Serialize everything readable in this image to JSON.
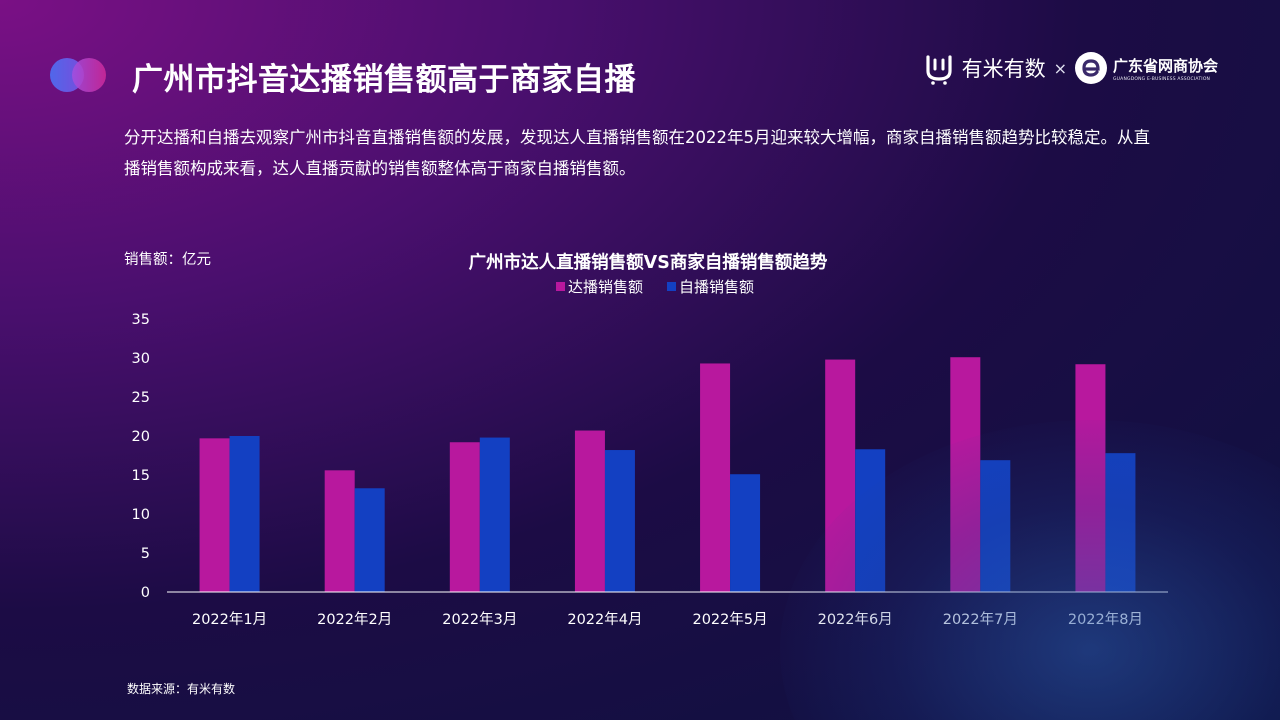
{
  "header": {
    "title": "广州市抖音达播销售额高于商家自播",
    "logo_primary_text": "有米有数",
    "logo_separator": "×",
    "logo_partner_text": "广东省网商协会",
    "logo_partner_sub": "GUANGDONG E-BUSINESS ASSOCIATION"
  },
  "description": "分开达播和自播去观察广州市抖音直播销售额的发展，发现达人直播销售额在2022年5月迎来较大增幅，商家自播销售额趋势比较稳定。从直播销售额构成来看，达人直播贡献的销售额整体高于商家自播销售额。",
  "unit_label": "销售额：亿元",
  "source_label": "数据来源：有米有数",
  "colors": {
    "series_influencer": "#b8189e",
    "series_merchant": "#1340c2",
    "axis": "#ffffff"
  },
  "chart_data": {
    "type": "bar",
    "title": "广州市达人直播销售额VS商家自播销售额趋势",
    "categories": [
      "2022年1月",
      "2022年2月",
      "2022年3月",
      "2022年4月",
      "2022年5月",
      "2022年6月",
      "2022年7月",
      "2022年8月"
    ],
    "series": [
      {
        "name": "达播销售额",
        "values": [
          19.7,
          15.6,
          19.2,
          20.7,
          29.3,
          29.8,
          30.1,
          29.2
        ]
      },
      {
        "name": "自播销售额",
        "values": [
          20.0,
          13.3,
          19.8,
          18.2,
          15.1,
          18.3,
          16.9,
          17.8
        ]
      }
    ],
    "ylim": [
      0,
      35
    ],
    "yticks": [
      "0",
      "5",
      "10",
      "15",
      "20",
      "25",
      "30",
      "35"
    ],
    "grid": false,
    "legend": "top-center"
  }
}
